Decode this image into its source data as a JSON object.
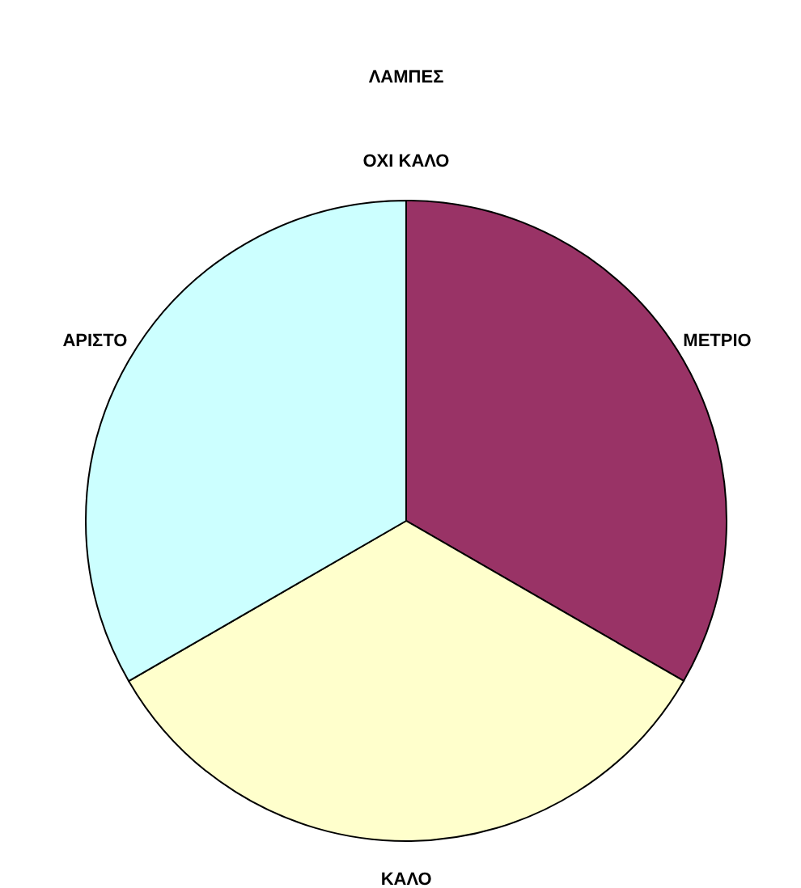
{
  "chart_data": {
    "type": "pie",
    "title": "ΛΑΜΠΕΣ",
    "categories": [
      "ΟΧΙ ΚΑΛΟ",
      "ΜΕΤΡΙΟ",
      "ΚΑΛΟ",
      "ΑΡΙΣΤΟ"
    ],
    "values": [
      0,
      33.33,
      33.33,
      33.34
    ],
    "colors": [
      "#9999ff",
      "#993366",
      "#ffffcc",
      "#ccffff"
    ]
  }
}
